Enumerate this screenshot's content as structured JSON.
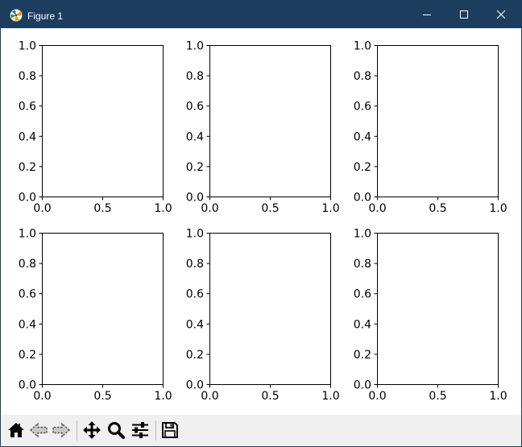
{
  "window": {
    "title": "Figure 1",
    "app_icon": "matplotlib-logo-icon",
    "controls": [
      "minimize-icon",
      "maximize-icon",
      "close-icon"
    ]
  },
  "toolbar": {
    "tools": [
      {
        "name": "home-button",
        "icon": "home-icon"
      },
      {
        "name": "back-button",
        "icon": "back-arrow-icon"
      },
      {
        "name": "forward-button",
        "icon": "forward-arrow-icon"
      },
      {
        "name": "pan-button",
        "icon": "move-icon"
      },
      {
        "name": "zoom-button",
        "icon": "zoom-icon"
      },
      {
        "name": "configure-subplots-button",
        "icon": "sliders-icon"
      },
      {
        "name": "save-button",
        "icon": "save-icon"
      }
    ]
  },
  "chart_data": [
    {
      "type": "scatter",
      "grid": false,
      "xlim": [
        0.0,
        1.0
      ],
      "ylim": [
        0.0,
        1.0
      ],
      "xticks": [
        "0.0",
        "0.5",
        "1.0"
      ],
      "yticks": [
        "0.0",
        "0.2",
        "0.4",
        "0.6",
        "0.8",
        "1.0"
      ]
    },
    {
      "type": "scatter",
      "grid": false,
      "xlim": [
        0.0,
        1.0
      ],
      "ylim": [
        0.0,
        1.0
      ],
      "xticks": [
        "0.0",
        "0.5",
        "1.0"
      ],
      "yticks": [
        "0.0",
        "0.2",
        "0.4",
        "0.6",
        "0.8",
        "1.0"
      ]
    },
    {
      "type": "scatter",
      "grid": false,
      "xlim": [
        0.0,
        1.0
      ],
      "ylim": [
        0.0,
        1.0
      ],
      "xticks": [
        "0.0",
        "0.5",
        "1.0"
      ],
      "yticks": [
        "0.0",
        "0.2",
        "0.4",
        "0.6",
        "0.8",
        "1.0"
      ]
    },
    {
      "type": "scatter",
      "grid": false,
      "xlim": [
        0.0,
        1.0
      ],
      "ylim": [
        0.0,
        1.0
      ],
      "xticks": [
        "0.0",
        "0.5",
        "1.0"
      ],
      "yticks": [
        "0.0",
        "0.2",
        "0.4",
        "0.6",
        "0.8",
        "1.0"
      ]
    },
    {
      "type": "scatter",
      "grid": false,
      "xlim": [
        0.0,
        1.0
      ],
      "ylim": [
        0.0,
        1.0
      ],
      "xticks": [
        "0.0",
        "0.5",
        "1.0"
      ],
      "yticks": [
        "0.0",
        "0.2",
        "0.4",
        "0.6",
        "0.8",
        "1.0"
      ]
    },
    {
      "type": "scatter",
      "grid": false,
      "xlim": [
        0.0,
        1.0
      ],
      "ylim": [
        0.0,
        1.0
      ],
      "xticks": [
        "0.0",
        "0.5",
        "1.0"
      ],
      "yticks": [
        "0.0",
        "0.2",
        "0.4",
        "0.6",
        "0.8",
        "1.0"
      ]
    }
  ]
}
